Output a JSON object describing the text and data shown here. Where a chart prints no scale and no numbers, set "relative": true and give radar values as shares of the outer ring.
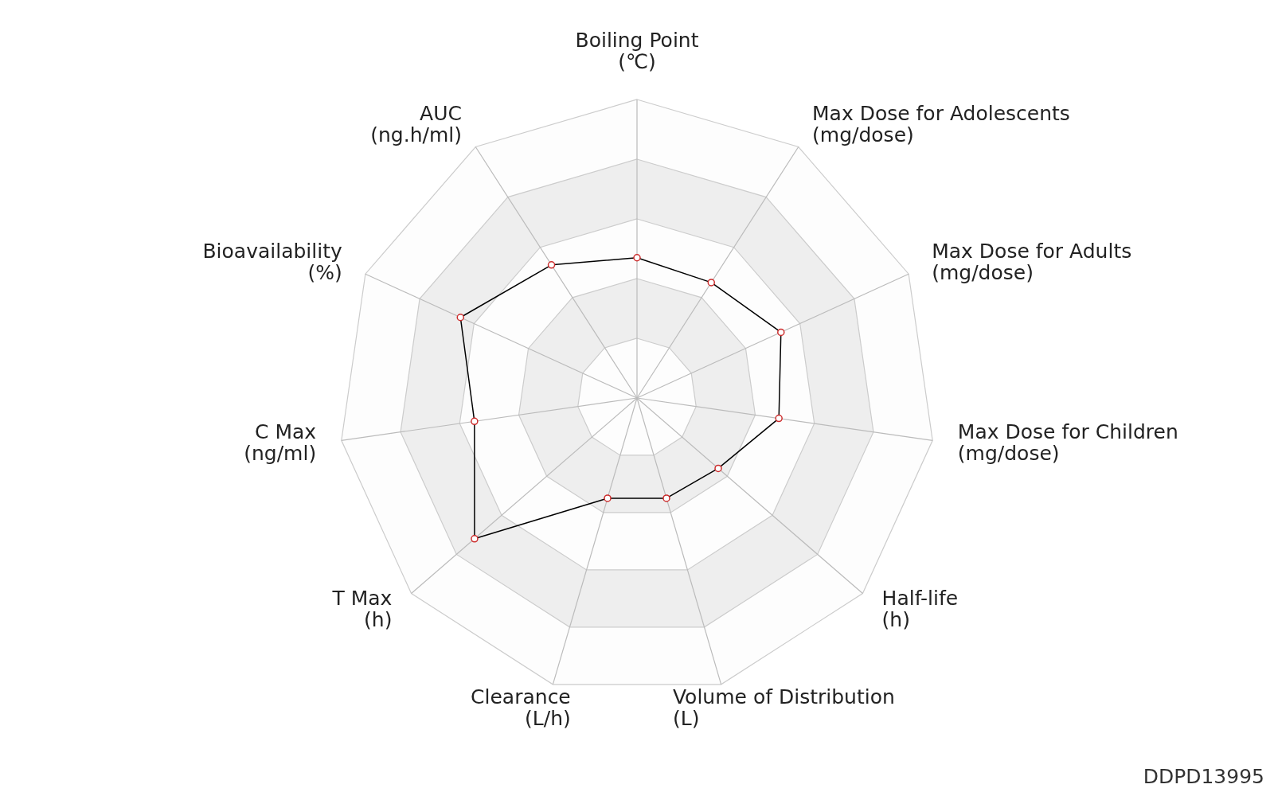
{
  "chart_data": {
    "type": "radar",
    "categories": [
      "Boiling Point\n(℃)",
      "Max Dose for Adolescents\n(mg/dose)",
      "Max Dose for Adults\n(mg/dose)",
      "Max Dose for Children\n(mg/dose)",
      "Half-life\n(h)",
      "Volume of Distribution\n(L)",
      "Clearance\n(L/h)",
      "T Max\n(h)",
      "C Max\n(ng/ml)",
      "Bioavailability\n(%)",
      "AUC\n(ng.h/ml)"
    ],
    "series": [
      {
        "color": "#000000",
        "colors": [
          "#cd2d2d",
          "#cd2d2d",
          "#cd2d2d",
          "#cd2d2d",
          "#cd2d2d",
          "#cd2d2d",
          "#cd2d2d",
          "#cd2d2d",
          "#cd2d2d",
          "#cd2d2d",
          "#cd2d2d"
        ],
        "values": [
          0.47,
          0.46,
          0.53,
          0.48,
          0.36,
          0.35,
          0.35,
          0.72,
          0.55,
          0.65,
          0.53
        ]
      }
    ],
    "relative": true,
    "grid": true,
    "marker": "circle",
    "annotations": [
      "DDPD13995"
    ]
  }
}
